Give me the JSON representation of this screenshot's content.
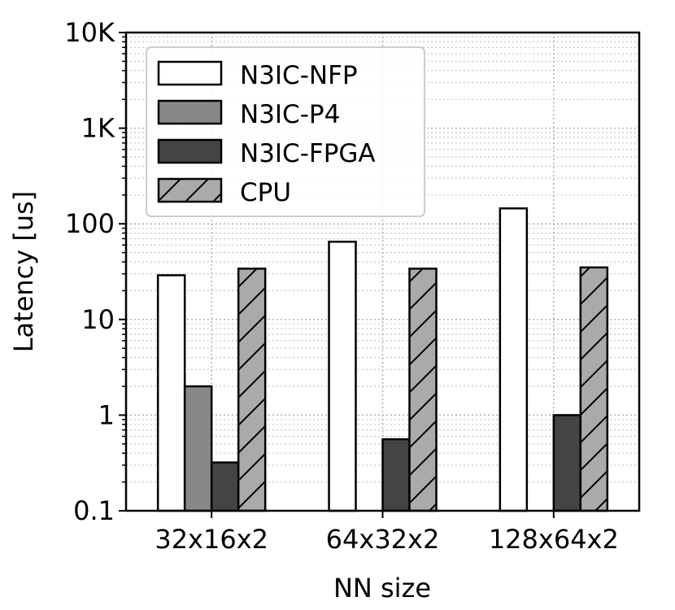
{
  "chart_data": {
    "type": "bar",
    "xlabel": "NN size",
    "ylabel": "Latency [us]",
    "yscale": "log",
    "ylim": [
      0.1,
      10000
    ],
    "yticks": [
      0.1,
      1,
      10,
      100,
      1000,
      10000
    ],
    "ytick_labels": [
      "0.1",
      "1",
      "10",
      "100",
      "1K",
      "10K"
    ],
    "categories": [
      "32x16x2",
      "64x32x2",
      "128x64x2"
    ],
    "grid": "both, dotted (major and minor)",
    "legend_position": "top-left",
    "series": [
      {
        "name": "N3IC-NFP",
        "values": [
          29,
          65,
          145
        ],
        "color": "#ffffff",
        "hatch": "none"
      },
      {
        "name": "N3IC-P4",
        "values": [
          2.0,
          null,
          null
        ],
        "color": "#888888",
        "hatch": "none"
      },
      {
        "name": "N3IC-FPGA",
        "values": [
          0.32,
          0.56,
          1.0
        ],
        "color": "#444444",
        "hatch": "none"
      },
      {
        "name": "CPU",
        "values": [
          34,
          34,
          35
        ],
        "color": "#aaaaaa",
        "hatch": "diagonal"
      }
    ]
  }
}
